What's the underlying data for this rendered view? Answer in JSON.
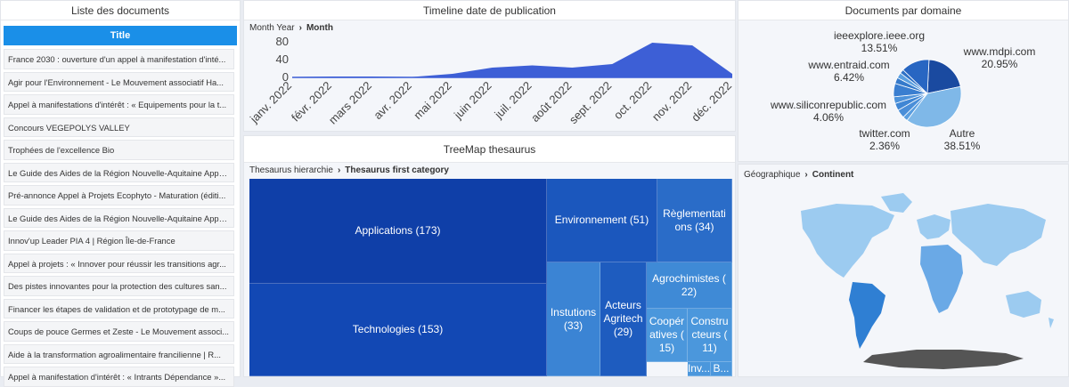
{
  "docs": {
    "title": "Liste des documents",
    "column": "Title",
    "items": [
      "France 2030 : ouverture d'un appel à manifestation d'inté...",
      "Agir pour l'Environnement - Le Mouvement associatif Ha...",
      "Appel à manifestations d'intérêt : « Equipements pour la t...",
      "Concours VEGEPOLYS VALLEY",
      "Trophées de l'excellence Bio",
      "Le Guide des Aides de la Région Nouvelle-Aquitaine Appe...",
      "Pré-annonce Appel à Projets Ecophyto - Maturation (éditi...",
      "Le Guide des Aides de la Région Nouvelle-Aquitaine Appe...",
      "Innov'up Leader PIA 4 | Région Île-de-France",
      "Appel à projets : « Innover pour réussir les transitions agr...",
      "Des pistes innovantes pour la protection des cultures san...",
      "Financer les étapes de validation et de prototypage de m...",
      "Coups de pouce Germes et Zeste - Le Mouvement associ...",
      "Aide à la transformation agroalimentaire francilienne | R...",
      "Appel à manifestation d'intérêt : « Intrants Dépendance »..."
    ]
  },
  "timeline": {
    "title": "Timeline date de publication",
    "crumb_parent": "Month Year",
    "crumb_current": "Month"
  },
  "domain": {
    "title": "Documents par domaine",
    "labels": [
      {
        "name": "ieeexplore.ieee.org",
        "pct": "13.51%"
      },
      {
        "name": "www.mdpi.com",
        "pct": "20.95%"
      },
      {
        "name": "www.entraid.com",
        "pct": "6.42%"
      },
      {
        "name": "www.siliconrepublic.com",
        "pct": "4.06%"
      },
      {
        "name": "twitter.com",
        "pct": "2.36%"
      },
      {
        "name": "Autre",
        "pct": "38.51%"
      }
    ]
  },
  "treemap": {
    "title": "TreeMap thesaurus",
    "crumb_parent": "Thesaurus hierarchie",
    "crumb_current": "Thesaurus first category",
    "cells": [
      {
        "label": "Applications (173)",
        "color": "#0f3fa8"
      },
      {
        "label": "Technologies (153)",
        "color": "#1248b4"
      },
      {
        "label": "Environnement (51)",
        "color": "#1b57bd"
      },
      {
        "label": "Règlementati ons (34)",
        "color": "#2a6cc8"
      },
      {
        "label": "Instutions (33)",
        "color": "#3b84d4"
      },
      {
        "label": "Acteurs Agritech (29)",
        "color": "#1e5cbf"
      },
      {
        "label": "Agrochimistes ( 22)",
        "color": "#3f8ad6"
      },
      {
        "label": "Coopér atives ( 15)",
        "color": "#4b97dc"
      },
      {
        "label": "Constru cteurs ( 11)",
        "color": "#4b97dc"
      },
      {
        "label": "Inv...",
        "color": "#4b97dc"
      },
      {
        "label": "B...",
        "color": "#4b97dc"
      }
    ]
  },
  "geo": {
    "crumb_parent": "Géographique",
    "crumb_current": "Continent"
  },
  "chart_data": [
    {
      "type": "area",
      "categories": [
        "janv. 2022",
        "févr. 2022",
        "mars 2022",
        "avr. 2022",
        "mai 2022",
        "juin 2022",
        "juil. 2022",
        "août 2022",
        "sept. 2022",
        "oct. 2022",
        "nov. 2022",
        "déc. 2022"
      ],
      "values": [
        1,
        2,
        2,
        1,
        8,
        22,
        27,
        22,
        30,
        78,
        72,
        8
      ],
      "yticks": [
        "80",
        "40",
        "0"
      ],
      "ylim": [
        0,
        80
      ],
      "color": "#3d5fd6"
    },
    {
      "type": "pie",
      "slices": [
        {
          "name": "Autre",
          "value": 38.51,
          "color": "#7fb8e8"
        },
        {
          "name": "www.mdpi.com",
          "value": 20.95,
          "color": "#1a4aa0"
        },
        {
          "name": "ieeexplore.ieee.org",
          "value": 13.51,
          "color": "#2866c2"
        },
        {
          "name": "www.entraid.com",
          "value": 6.42,
          "color": "#3a7ed0"
        },
        {
          "name": "www.siliconrepublic.com",
          "value": 4.06,
          "color": "#4a8ed8"
        },
        {
          "name": "twitter.com",
          "value": 2.36,
          "color": "#5a9ee0"
        },
        {
          "name": "other-1",
          "value": 3.5,
          "color": "#3f86d4"
        },
        {
          "name": "other-2",
          "value": 3.2,
          "color": "#4d92da"
        },
        {
          "name": "other-3",
          "value": 2.9,
          "color": "#357acb"
        },
        {
          "name": "other-4",
          "value": 2.6,
          "color": "#5b9fe0"
        },
        {
          "name": "other-5",
          "value": 1.98,
          "color": "#2f72c6"
        }
      ]
    }
  ]
}
